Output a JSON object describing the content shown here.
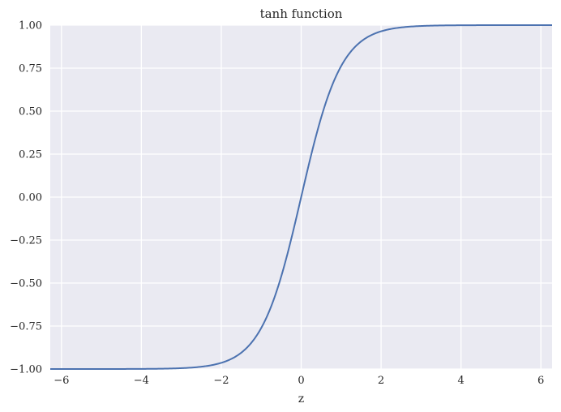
{
  "chart_data": {
    "type": "line",
    "title": "tanh function",
    "xlabel": "z",
    "ylabel": "",
    "xlim": [
      -6.28,
      6.28
    ],
    "ylim": [
      -1.0,
      1.0
    ],
    "grid": true,
    "x_ticks": [
      -6,
      -4,
      -2,
      0,
      2,
      4,
      6
    ],
    "x_tick_labels": [
      "−6",
      "−4",
      "−2",
      "0",
      "2",
      "4",
      "6"
    ],
    "y_ticks": [
      -1.0,
      -0.75,
      -0.5,
      -0.25,
      0.0,
      0.25,
      0.5,
      0.75,
      1.0
    ],
    "y_tick_labels": [
      "−1.00",
      "−0.75",
      "−0.50",
      "−0.25",
      "0.00",
      "0.25",
      "0.50",
      "0.75",
      "1.00"
    ],
    "series": [
      {
        "function": "tanh",
        "color": "#4c72b0",
        "x": [
          -6.28,
          -5,
          -4,
          -3,
          -2.5,
          -2,
          -1.75,
          -1.5,
          -1.25,
          -1,
          -0.75,
          -0.5,
          -0.25,
          0,
          0.25,
          0.5,
          0.75,
          1,
          1.25,
          1.5,
          1.75,
          2,
          2.5,
          3,
          4,
          5,
          6.28
        ],
        "y": [
          -1.0,
          -0.9999,
          -0.9993,
          -0.9951,
          -0.9866,
          -0.964,
          -0.9414,
          -0.9051,
          -0.8483,
          -0.7616,
          -0.6351,
          -0.4621,
          -0.2449,
          0.0,
          0.2449,
          0.4621,
          0.6351,
          0.7616,
          0.8483,
          0.9051,
          0.9414,
          0.964,
          0.9866,
          0.9951,
          0.9993,
          0.9999,
          1.0
        ]
      }
    ]
  },
  "colors": {
    "plot_background": "#eaeaf2",
    "grid": "#ffffff",
    "line": "#4c72b0",
    "text": "#262626"
  }
}
